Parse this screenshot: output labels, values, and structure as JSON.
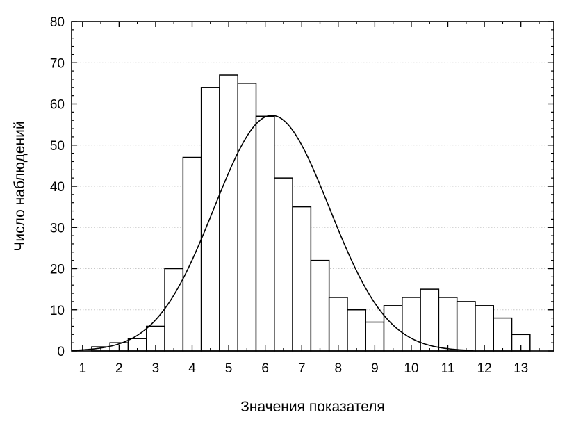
{
  "chart_data": {
    "type": "bar",
    "xlabel": "Значения показателя",
    "ylabel": "Число наблюдений",
    "xlim": [
      0.7,
      13.9
    ],
    "ylim": [
      0,
      80
    ],
    "grid": true,
    "x_ticks": [
      1,
      2,
      3,
      4,
      5,
      6,
      7,
      8,
      9,
      10,
      11,
      12,
      13
    ],
    "y_ticks": [
      0,
      10,
      20,
      30,
      40,
      50,
      60,
      70,
      80
    ],
    "bin_width": 0.5,
    "bins": [
      {
        "x": 1.0,
        "value": 0
      },
      {
        "x": 1.5,
        "value": 1
      },
      {
        "x": 2.0,
        "value": 2
      },
      {
        "x": 2.5,
        "value": 3
      },
      {
        "x": 3.0,
        "value": 6
      },
      {
        "x": 3.5,
        "value": 20
      },
      {
        "x": 4.0,
        "value": 47
      },
      {
        "x": 4.5,
        "value": 64
      },
      {
        "x": 5.0,
        "value": 67
      },
      {
        "x": 5.5,
        "value": 65
      },
      {
        "x": 6.0,
        "value": 57
      },
      {
        "x": 6.5,
        "value": 42
      },
      {
        "x": 7.0,
        "value": 35
      },
      {
        "x": 7.5,
        "value": 22
      },
      {
        "x": 8.0,
        "value": 13
      },
      {
        "x": 8.5,
        "value": 10
      },
      {
        "x": 9.0,
        "value": 7
      },
      {
        "x": 9.5,
        "value": 11
      },
      {
        "x": 10.0,
        "value": 13
      },
      {
        "x": 10.5,
        "value": 15
      },
      {
        "x": 11.0,
        "value": 13
      },
      {
        "x": 11.5,
        "value": 12
      },
      {
        "x": 12.0,
        "value": 11
      },
      {
        "x": 12.5,
        "value": 8
      },
      {
        "x": 13.0,
        "value": 4
      }
    ],
    "normal_curve": {
      "peak_x": 6.18,
      "peak_y": 57.2,
      "sd": 1.58
    },
    "colors": {
      "bar_fill": "#ffffff",
      "bar_stroke": "#000000",
      "curve": "#000000",
      "grid": "#c8c8c8"
    }
  }
}
